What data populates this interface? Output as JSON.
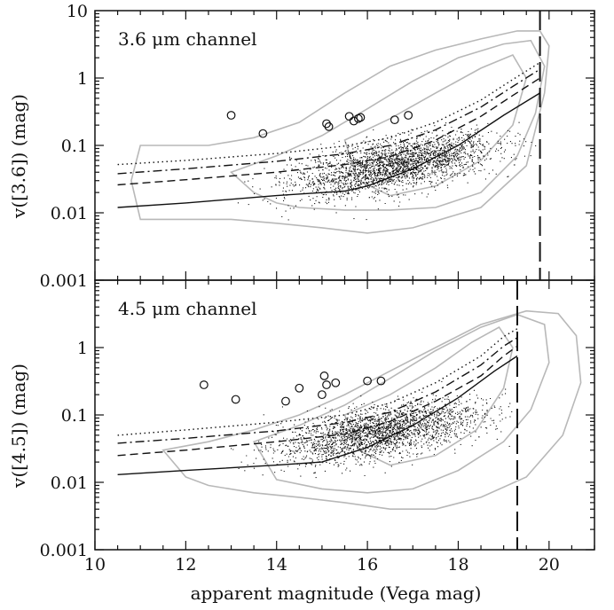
{
  "chart_data": {
    "type": "scatter",
    "shared_x_axis": {
      "label": "apparent magnitude (Vega mag)",
      "xlim": [
        10,
        21
      ],
      "ticks": [
        10,
        12,
        14,
        16,
        18,
        20
      ],
      "tick_labels": [
        "10",
        "12",
        "14",
        "16",
        "18",
        "20"
      ]
    },
    "panels": [
      {
        "title": "3.6 μm channel",
        "ylabel": "v([3.6]) (mag)",
        "yscale": "log",
        "ylim": [
          0.001,
          10
        ],
        "yticks": [
          0.001,
          0.01,
          0.1,
          1,
          10
        ],
        "ytick_labels": [
          "0.001",
          "0.01",
          "0.1",
          "1",
          "10"
        ],
        "limit_magnitude": 19.8,
        "dots": {
          "count": 2600,
          "x_range": [
            13.0,
            19.8
          ],
          "center": [
            16.6,
            0.05
          ],
          "spread": 0.18
        },
        "variables": [
          {
            "x": 13.0,
            "y": 0.28
          },
          {
            "x": 13.7,
            "y": 0.15
          },
          {
            "x": 15.1,
            "y": 0.21
          },
          {
            "x": 15.15,
            "y": 0.19
          },
          {
            "x": 15.6,
            "y": 0.27
          },
          {
            "x": 15.7,
            "y": 0.23
          },
          {
            "x": 15.8,
            "y": 0.25
          },
          {
            "x": 15.85,
            "y": 0.26
          },
          {
            "x": 16.6,
            "y": 0.24
          },
          {
            "x": 16.9,
            "y": 0.28
          }
        ],
        "curves": [
          {
            "style": "solid",
            "x": [
              10.5,
              12,
              14,
              15.5,
              16,
              17,
              18,
              19,
              19.8
            ],
            "y": [
              0.012,
              0.014,
              0.018,
              0.021,
              0.025,
              0.045,
              0.1,
              0.28,
              0.6
            ]
          },
          {
            "style": "dashed",
            "x": [
              10.5,
              12,
              14,
              15.5,
              16.5,
              17.5,
              18.5,
              19.2,
              19.8
            ],
            "y": [
              0.026,
              0.031,
              0.04,
              0.052,
              0.068,
              0.12,
              0.27,
              0.55,
              1.0
            ]
          },
          {
            "style": "dashdot",
            "x": [
              10.5,
              12,
              14,
              15.5,
              16.5,
              17.5,
              18.5,
              19.2,
              19.8
            ],
            "y": [
              0.038,
              0.045,
              0.058,
              0.075,
              0.1,
              0.17,
              0.37,
              0.75,
              1.35
            ]
          },
          {
            "style": "dotted",
            "x": [
              10.5,
              12,
              14,
              15.5,
              16.5,
              17.5,
              18.5,
              19.2,
              19.8
            ],
            "y": [
              0.052,
              0.06,
              0.076,
              0.098,
              0.13,
              0.22,
              0.47,
              0.95,
              1.7
            ]
          }
        ],
        "contours": [
          {
            "x": [
              11.0,
              12.5,
              13.5,
              14.5,
              15.5,
              16.5,
              17.5,
              18.5,
              19.3,
              19.8,
              20.0,
              19.9,
              19.5,
              18.5,
              17.0,
              16.0,
              15.0,
              14.0,
              13.0,
              12.0,
              11.0,
              10.8,
              11.0
            ],
            "y": [
              0.1,
              0.1,
              0.13,
              0.22,
              0.6,
              1.5,
              2.6,
              3.8,
              5.0,
              5.0,
              3.0,
              0.6,
              0.05,
              0.012,
              0.006,
              0.005,
              0.006,
              0.007,
              0.008,
              0.008,
              0.008,
              0.03,
              0.1
            ]
          },
          {
            "x": [
              13.0,
              14.0,
              15.0,
              16.0,
              17.0,
              18.0,
              19.0,
              19.6,
              19.9,
              19.7,
              19.3,
              18.5,
              17.5,
              16.5,
              15.5,
              14.5,
              14.0,
              13.5,
              13.0
            ],
            "y": [
              0.04,
              0.07,
              0.14,
              0.35,
              0.9,
              2.0,
              3.2,
              3.6,
              1.5,
              0.3,
              0.07,
              0.02,
              0.012,
              0.011,
              0.011,
              0.012,
              0.014,
              0.02,
              0.04
            ]
          },
          {
            "x": [
              15.5,
              16.5,
              17.5,
              18.5,
              19.2,
              19.5,
              19.2,
              18.5,
              17.5,
              16.5,
              15.8,
              15.5
            ],
            "y": [
              0.12,
              0.25,
              0.6,
              1.4,
              2.2,
              1.0,
              0.2,
              0.06,
              0.025,
              0.018,
              0.03,
              0.12
            ]
          }
        ]
      },
      {
        "title": "4.5 μm channel",
        "ylabel": "v([4.5]) (mag)",
        "yscale": "log",
        "ylim": [
          0.001,
          10
        ],
        "yticks": [
          0.001,
          0.01,
          0.1,
          1
        ],
        "ytick_labels": [
          "0.001",
          "0.01",
          "0.1",
          "1"
        ],
        "limit_magnitude": 19.3,
        "dots": {
          "count": 2400,
          "x_range": [
            12.5,
            19.3
          ],
          "center": [
            16.3,
            0.055
          ],
          "spread": 0.18
        },
        "variables": [
          {
            "x": 12.4,
            "y": 0.28
          },
          {
            "x": 13.1,
            "y": 0.17
          },
          {
            "x": 14.2,
            "y": 0.16
          },
          {
            "x": 14.5,
            "y": 0.25
          },
          {
            "x": 15.0,
            "y": 0.2
          },
          {
            "x": 15.05,
            "y": 0.38
          },
          {
            "x": 15.1,
            "y": 0.28
          },
          {
            "x": 15.3,
            "y": 0.3
          },
          {
            "x": 16.0,
            "y": 0.32
          },
          {
            "x": 16.3,
            "y": 0.32
          }
        ],
        "curves": [
          {
            "style": "solid",
            "x": [
              10.5,
              12,
              14,
              15,
              16,
              17,
              18,
              18.8,
              19.3
            ],
            "y": [
              0.013,
              0.015,
              0.018,
              0.02,
              0.033,
              0.07,
              0.18,
              0.45,
              0.75
            ]
          },
          {
            "style": "dashed",
            "x": [
              10.5,
              12,
              14,
              15.5,
              16.5,
              17.5,
              18.5,
              19.0,
              19.3
            ],
            "y": [
              0.025,
              0.03,
              0.04,
              0.052,
              0.08,
              0.16,
              0.38,
              0.75,
              1.05
            ]
          },
          {
            "style": "dashdot",
            "x": [
              10.5,
              12,
              14,
              15.5,
              16.5,
              17.5,
              18.5,
              19.0,
              19.3
            ],
            "y": [
              0.038,
              0.045,
              0.058,
              0.077,
              0.11,
              0.22,
              0.55,
              1.05,
              1.4
            ]
          },
          {
            "style": "dotted",
            "x": [
              10.5,
              12,
              14,
              15.5,
              16.5,
              17.5,
              18.5,
              19.0,
              19.3
            ],
            "y": [
              0.05,
              0.06,
              0.078,
              0.1,
              0.15,
              0.3,
              0.75,
              1.45,
              1.9
            ]
          }
        ],
        "contours": [
          {
            "x": [
              11.5,
              12.5,
              13.5,
              14.5,
              15.5,
              16.5,
              17.5,
              18.5,
              19.5,
              20.2,
              20.6,
              20.7,
              20.3,
              19.5,
              18.5,
              17.5,
              16.5,
              15.5,
              14.5,
              13.5,
              12.5,
              12.0,
              11.5
            ],
            "y": [
              0.03,
              0.04,
              0.06,
              0.1,
              0.2,
              0.45,
              1.0,
              2.2,
              3.5,
              3.2,
              1.5,
              0.3,
              0.05,
              0.012,
              0.006,
              0.004,
              0.004,
              0.005,
              0.006,
              0.007,
              0.009,
              0.012,
              0.03
            ]
          },
          {
            "x": [
              13.5,
              14.5,
              15.5,
              16.5,
              17.5,
              18.5,
              19.3,
              19.9,
              20.0,
              19.6,
              19.0,
              18.0,
              17.0,
              16.0,
              15.0,
              14.0,
              13.5
            ],
            "y": [
              0.04,
              0.07,
              0.14,
              0.35,
              0.9,
              2.0,
              3.1,
              2.2,
              0.6,
              0.12,
              0.04,
              0.015,
              0.008,
              0.007,
              0.008,
              0.011,
              0.04
            ]
          },
          {
            "x": [
              15.5,
              16.5,
              17.5,
              18.3,
              18.9,
              19.2,
              19.0,
              18.4,
              17.5,
              16.5,
              15.8,
              15.5
            ],
            "y": [
              0.1,
              0.2,
              0.5,
              1.2,
              2.0,
              1.0,
              0.25,
              0.06,
              0.025,
              0.018,
              0.03,
              0.1
            ]
          }
        ]
      }
    ]
  }
}
